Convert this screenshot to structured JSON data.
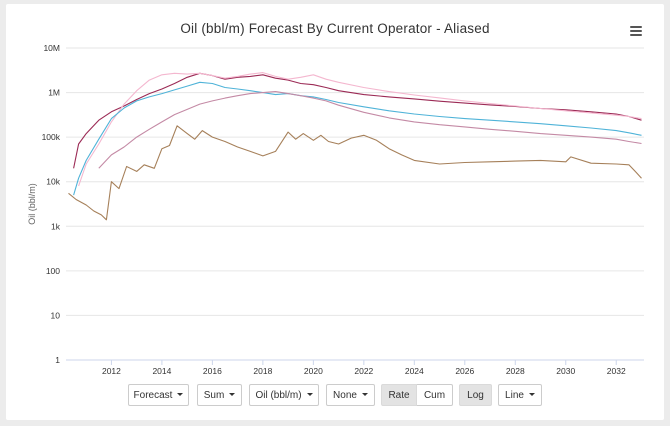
{
  "chart_data": {
    "type": "line",
    "title": "Oil (bbl/m) Forecast By Current Operator - Aliased",
    "ylabel": "Oil (bbl/m)",
    "xlabel": "",
    "yscale": "log",
    "ylim": [
      1,
      10000000
    ],
    "xlim": [
      2010.2,
      2033.1
    ],
    "y_tick_labels": [
      "1",
      "10",
      "100",
      "1k",
      "10k",
      "100k",
      "1M",
      "10M"
    ],
    "x_tick_labels": [
      "2012",
      "2014",
      "2016",
      "2018",
      "2020",
      "2022",
      "2024",
      "2026",
      "2028",
      "2030",
      "2032"
    ],
    "grid": "horizontal",
    "series": [
      {
        "color": "#9b2a55",
        "x": [
          2010.5,
          2010.7,
          2011.0,
          2011.5,
          2012.0,
          2012.5,
          2013.0,
          2013.5,
          2014.0,
          2014.5,
          2015.0,
          2015.5,
          2016.0,
          2016.5,
          2017.0,
          2017.5,
          2018.0,
          2018.5,
          2019.0,
          2019.5,
          2020.0,
          2020.5,
          2021.0,
          2022.0,
          2023.0,
          2024.0,
          2025.0,
          2026.0,
          2027.0,
          2028.0,
          2029.0,
          2030.0,
          2031.0,
          2032.0,
          2032.5,
          2033.0
        ],
        "values": [
          20000,
          70000,
          120000,
          240000,
          370000,
          500000,
          700000,
          950000,
          1200000,
          1600000,
          2200000,
          2700000,
          2400000,
          2000000,
          2200000,
          2300000,
          2500000,
          2100000,
          1900000,
          1600000,
          1500000,
          1300000,
          1100000,
          900000,
          800000,
          720000,
          640000,
          580000,
          530000,
          490000,
          440000,
          410000,
          370000,
          330000,
          290000,
          240000
        ]
      },
      {
        "color": "#f4b7cf",
        "x": [
          2010.7,
          2011.0,
          2011.5,
          2012.0,
          2012.5,
          2013.0,
          2013.5,
          2014.0,
          2014.5,
          2015.0,
          2015.5,
          2016.0,
          2016.5,
          2017.0,
          2017.5,
          2018.0,
          2018.5,
          2019.0,
          2019.5,
          2020.0,
          2020.5,
          2021.0,
          2022.0,
          2023.0,
          2024.0,
          2025.0,
          2026.0,
          2027.0,
          2028.0,
          2029.0,
          2030.0,
          2031.0,
          2032.0,
          2032.5,
          2033.0
        ],
        "values": [
          8000,
          25000,
          70000,
          220000,
          550000,
          1100000,
          1900000,
          2500000,
          2700000,
          2600000,
          2700000,
          2400000,
          2100000,
          2300000,
          2600000,
          2800000,
          2300000,
          2000000,
          2200000,
          2500000,
          2000000,
          1700000,
          1300000,
          1050000,
          880000,
          760000,
          650000,
          570000,
          500000,
          440000,
          390000,
          350000,
          310000,
          290000,
          260000
        ]
      },
      {
        "color": "#4fb3d8",
        "x": [
          2010.5,
          2010.7,
          2011.0,
          2011.5,
          2012.0,
          2012.5,
          2013.0,
          2013.5,
          2014.0,
          2014.5,
          2015.0,
          2015.5,
          2016.0,
          2016.5,
          2017.0,
          2017.5,
          2018.0,
          2018.5,
          2019.0,
          2019.5,
          2020.0,
          2020.5,
          2021.0,
          2022.0,
          2023.0,
          2024.0,
          2025.0,
          2026.0,
          2027.0,
          2028.0,
          2029.0,
          2030.0,
          2031.0,
          2032.0,
          2032.5,
          2033.0
        ],
        "values": [
          5000,
          12000,
          30000,
          90000,
          260000,
          450000,
          650000,
          800000,
          950000,
          1150000,
          1400000,
          1700000,
          1600000,
          1300000,
          1200000,
          1100000,
          1000000,
          900000,
          950000,
          850000,
          800000,
          700000,
          600000,
          480000,
          390000,
          330000,
          290000,
          260000,
          240000,
          220000,
          200000,
          180000,
          160000,
          140000,
          125000,
          110000
        ]
      },
      {
        "color": "#c48aa5",
        "x": [
          2011.5,
          2012.0,
          2012.5,
          2013.0,
          2013.5,
          2014.0,
          2014.5,
          2015.0,
          2015.5,
          2016.0,
          2016.5,
          2017.0,
          2017.5,
          2018.0,
          2018.5,
          2019.0,
          2019.5,
          2020.0,
          2020.5,
          2021.0,
          2022.0,
          2023.0,
          2024.0,
          2025.0,
          2026.0,
          2027.0,
          2028.0,
          2029.0,
          2030.0,
          2031.0,
          2032.0,
          2032.5,
          2033.0
        ],
        "values": [
          20000,
          40000,
          60000,
          100000,
          150000,
          220000,
          320000,
          420000,
          550000,
          650000,
          750000,
          850000,
          950000,
          1000000,
          1050000,
          950000,
          850000,
          750000,
          650000,
          520000,
          360000,
          270000,
          220000,
          190000,
          170000,
          150000,
          135000,
          120000,
          110000,
          100000,
          90000,
          80000,
          72000
        ]
      },
      {
        "color": "#a6805a",
        "x": [
          2010.3,
          2010.6,
          2011.0,
          2011.3,
          2011.6,
          2011.8,
          2012.0,
          2012.3,
          2012.6,
          2013.0,
          2013.3,
          2013.7,
          2014.0,
          2014.3,
          2014.6,
          2015.0,
          2015.3,
          2015.6,
          2016.0,
          2016.5,
          2017.0,
          2017.5,
          2018.0,
          2018.5,
          2019.0,
          2019.3,
          2019.6,
          2020.0,
          2020.3,
          2020.6,
          2021.0,
          2021.5,
          2022.0,
          2022.5,
          2023.0,
          2023.5,
          2024.0,
          2025.0,
          2026.0,
          2027.0,
          2028.0,
          2029.0,
          2030.0,
          2030.2,
          2031.0,
          2032.0,
          2032.5,
          2032.8,
          2033.0
        ],
        "values": [
          5500,
          4000,
          3000,
          2200,
          1800,
          1400,
          10000,
          7000,
          22000,
          17000,
          24000,
          20000,
          55000,
          65000,
          180000,
          120000,
          90000,
          140000,
          100000,
          80000,
          60000,
          48000,
          38000,
          48000,
          130000,
          90000,
          120000,
          85000,
          110000,
          80000,
          70000,
          95000,
          110000,
          85000,
          55000,
          40000,
          30000,
          25000,
          27000,
          28000,
          29000,
          30000,
          28000,
          36000,
          26000,
          25000,
          24000,
          16000,
          12000
        ]
      }
    ]
  },
  "controls": {
    "forecast": "Forecast",
    "sum": "Sum",
    "unit": "Oil (bbl/m)",
    "none": "None",
    "rate": "Rate",
    "cum": "Cum",
    "log": "Log",
    "line": "Line"
  }
}
